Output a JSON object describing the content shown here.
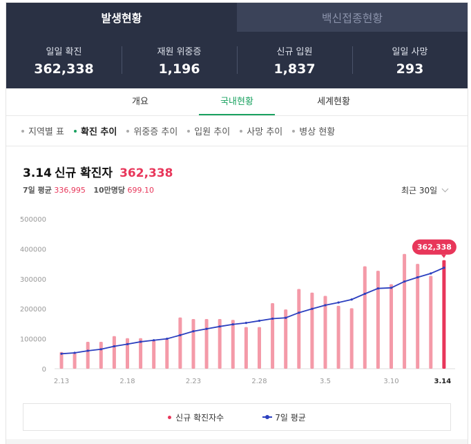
{
  "top_tabs": [
    {
      "label": "발생현황",
      "active": true
    },
    {
      "label": "백신접종현황",
      "active": false
    }
  ],
  "stats": [
    {
      "label": "일일 확진",
      "value": "362,338"
    },
    {
      "label": "재원 위중증",
      "value": "1,196"
    },
    {
      "label": "신규 입원",
      "value": "1,837"
    },
    {
      "label": "일일 사망",
      "value": "293"
    }
  ],
  "sub_tabs": [
    {
      "label": "개요",
      "active": false
    },
    {
      "label": "국내현황",
      "active": true
    },
    {
      "label": "세계현황",
      "active": false
    }
  ],
  "menu": [
    {
      "label": "지역별 표",
      "active": false
    },
    {
      "label": "확진 추이",
      "active": true
    },
    {
      "label": "위중증 추이",
      "active": false
    },
    {
      "label": "입원 추이",
      "active": false
    },
    {
      "label": "사망 추이",
      "active": false
    },
    {
      "label": "병상 현황",
      "active": false
    }
  ],
  "header": {
    "date": "3.14",
    "label": "신규 확진자",
    "value": "362,338",
    "avg_label": "7일 평균",
    "avg_value": "336,995",
    "per100k_label": "10만명당",
    "per100k_value": "699.10",
    "period": "최근 30일"
  },
  "colors": {
    "bar": "#f49aa8",
    "bar_highlight": "#e8365a",
    "avg_line": "#2b3fbf",
    "dark_bg": "#2a3144",
    "accent_green": "#1aa260"
  },
  "icons": {
    "period_toggle": "chevron-down-icon"
  },
  "chart_data": {
    "type": "bar",
    "title": "",
    "ylim": [
      0,
      500000
    ],
    "y_ticks": [
      "500000",
      "400000",
      "300000",
      "200000",
      "100000",
      "0"
    ],
    "x_tick_labels": [
      "2.13",
      "2.18",
      "2.23",
      "2.28",
      "3.5",
      "3.10",
      "3.14"
    ],
    "categories": [
      "2.13",
      "2.14",
      "2.15",
      "2.16",
      "2.17",
      "2.18",
      "2.19",
      "2.20",
      "2.21",
      "2.22",
      "2.23",
      "2.24",
      "2.25",
      "2.26",
      "2.27",
      "2.28",
      "3.1",
      "3.2",
      "3.3",
      "3.4",
      "3.5",
      "3.6",
      "3.7",
      "3.8",
      "3.9",
      "3.10",
      "3.11",
      "3.12",
      "3.13",
      "3.14"
    ],
    "series": [
      {
        "name": "신규 확진자수",
        "type": "bar",
        "values": [
          56000,
          53000,
          90000,
          90000,
          109000,
          102000,
          102000,
          95000,
          99000,
          171000,
          166000,
          166000,
          166000,
          163000,
          139000,
          139000,
          219000,
          198000,
          266000,
          254000,
          243000,
          210000,
          202000,
          342000,
          327000,
          282000,
          383000,
          350000,
          310000,
          362338
        ]
      },
      {
        "name": "7일 평균",
        "type": "line",
        "values": [
          50000,
          53000,
          60000,
          65000,
          75000,
          82000,
          90000,
          95000,
          100000,
          112000,
          125000,
          133000,
          141000,
          148000,
          153000,
          160000,
          167000,
          170000,
          187000,
          200000,
          212000,
          221000,
          231000,
          250000,
          268000,
          270000,
          291000,
          305000,
          318000,
          336995
        ]
      }
    ],
    "highlight": {
      "category": "3.14",
      "label": "362,338"
    },
    "legend": [
      {
        "label": "신규 확진자수"
      },
      {
        "label": "7일 평균"
      }
    ],
    "grid": false,
    "legend_position": "bottom"
  }
}
